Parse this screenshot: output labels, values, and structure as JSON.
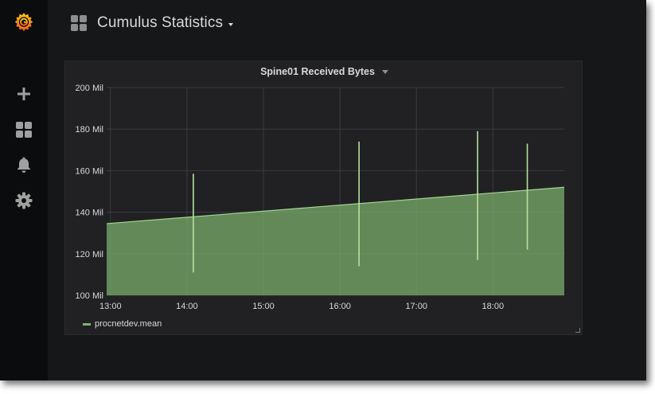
{
  "app": {
    "logo_icon": "grafana-logo-icon",
    "accent_color": "#f46800"
  },
  "sidebar": {
    "items": [
      {
        "name": "create",
        "icon": "plus-icon"
      },
      {
        "name": "dashboards",
        "icon": "dashboards-grid-icon"
      },
      {
        "name": "alerting",
        "icon": "bell-icon"
      },
      {
        "name": "configuration",
        "icon": "gear-icon"
      }
    ]
  },
  "header": {
    "title": "Cumulus Statistics",
    "icon": "dashboards-grid-icon"
  },
  "panel": {
    "title": "Spine01 Received Bytes",
    "legend": [
      {
        "name": "procnetdev.mean",
        "color": "#7eb26d"
      }
    ]
  },
  "chart_data": {
    "type": "area",
    "title": "Spine01 Received Bytes",
    "xlabel": "",
    "ylabel": "",
    "x_ticks": [
      "13:00",
      "14:00",
      "15:00",
      "16:00",
      "17:00",
      "18:00"
    ],
    "y_ticks": [
      "100 Mil",
      "120 Mil",
      "140 Mil",
      "160 Mil",
      "180 Mil",
      "200 Mil"
    ],
    "ylim": [
      100,
      200
    ],
    "y_unit": "Mil",
    "xlim": [
      "12:57",
      "18:56"
    ],
    "grid": true,
    "legend_position": "bottom-left",
    "series": [
      {
        "name": "procnetdev.mean",
        "color": "#7eb26d",
        "points": [
          {
            "x": "12:57",
            "y": 134.5
          },
          {
            "x": "18:56",
            "y": 152.0
          }
        ],
        "spikes": [
          {
            "x": "14:05",
            "low": 111,
            "high": 158.5
          },
          {
            "x": "16:15",
            "low": 114,
            "high": 174
          },
          {
            "x": "17:48",
            "low": 117,
            "high": 179
          },
          {
            "x": "18:27",
            "low": 122,
            "high": 173
          }
        ]
      }
    ]
  }
}
